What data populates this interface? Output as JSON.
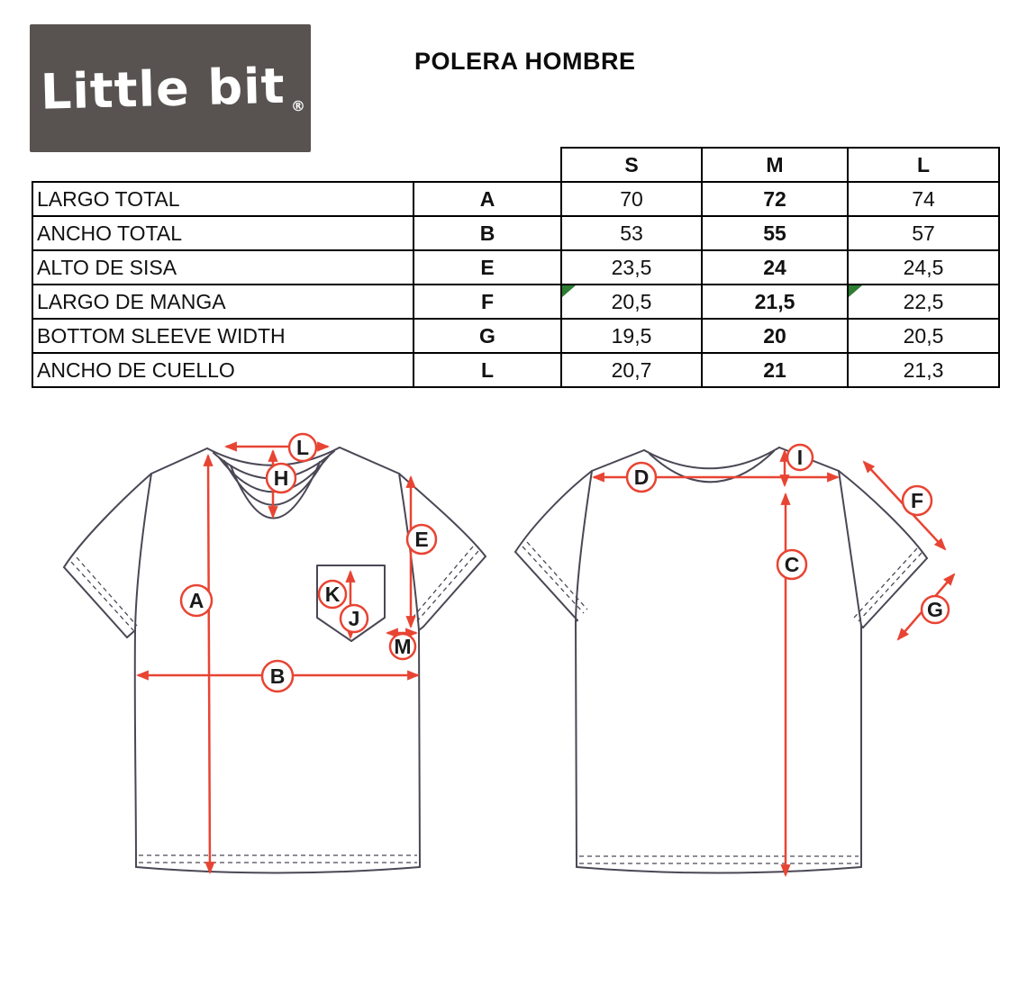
{
  "logo": {
    "text": "Little bit",
    "registered": "®"
  },
  "title": "POLERA HOMBRE",
  "table": {
    "size_headers": [
      "S",
      "M",
      "L"
    ],
    "rows": [
      {
        "label": "LARGO TOTAL",
        "letter": "A",
        "s": "70",
        "m": "72",
        "l": "74",
        "flag_s": false,
        "flag_l": false
      },
      {
        "label": "ANCHO TOTAL",
        "letter": "B",
        "s": "53",
        "m": "55",
        "l": "57",
        "flag_s": false,
        "flag_l": false
      },
      {
        "label": "ALTO DE SISA",
        "letter": "E",
        "s": "23,5",
        "m": "24",
        "l": "24,5",
        "flag_s": false,
        "flag_l": false
      },
      {
        "label": "LARGO DE MANGA",
        "letter": "F",
        "s": "20,5",
        "m": "21,5",
        "l": "22,5",
        "flag_s": true,
        "flag_l": true
      },
      {
        "label": "BOTTOM SLEEVE WIDTH",
        "letter": "G",
        "s": "19,5",
        "m": "20",
        "l": "20,5",
        "flag_s": false,
        "flag_l": false
      },
      {
        "label": "ANCHO DE CUELLO",
        "letter": "L",
        "s": "20,7",
        "m": "21",
        "l": "21,3",
        "flag_s": false,
        "flag_l": false
      }
    ]
  },
  "diagram": {
    "front_labels": {
      "L": "L",
      "H": "H",
      "A": "A",
      "E": "E",
      "K": "K",
      "J": "J",
      "M": "M",
      "B": "B"
    },
    "back_labels": {
      "D": "D",
      "I": "I",
      "C": "C",
      "F": "F",
      "G": "G"
    }
  },
  "colors": {
    "accent_red": "#e84433",
    "garment_line": "#4b4755",
    "logo_background": "#585351",
    "comment_flag_green": "#2e7d32"
  }
}
